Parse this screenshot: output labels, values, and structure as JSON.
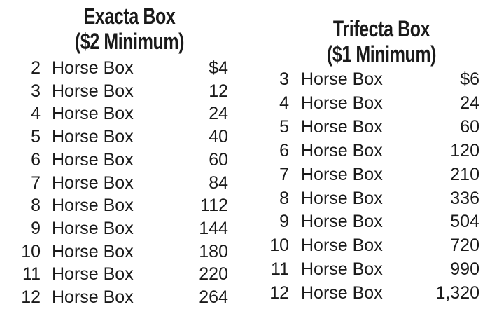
{
  "exacta": {
    "title": "Exacta Box",
    "subtitle": "($2 Minimum)",
    "rows": [
      {
        "n": "2",
        "label": "Horse Box",
        "cost": "$4"
      },
      {
        "n": "3",
        "label": "Horse Box",
        "cost": "12"
      },
      {
        "n": "4",
        "label": "Horse Box",
        "cost": "24"
      },
      {
        "n": "5",
        "label": "Horse Box",
        "cost": "40"
      },
      {
        "n": "6",
        "label": "Horse Box",
        "cost": "60"
      },
      {
        "n": "7",
        "label": "Horse Box",
        "cost": "84"
      },
      {
        "n": "8",
        "label": "Horse Box",
        "cost": "112"
      },
      {
        "n": "9",
        "label": "Horse Box",
        "cost": "144"
      },
      {
        "n": "10",
        "label": "Horse Box",
        "cost": "180"
      },
      {
        "n": "11",
        "label": "Horse Box",
        "cost": "220"
      },
      {
        "n": "12",
        "label": "Horse Box",
        "cost": "264"
      }
    ]
  },
  "trifecta": {
    "title": "Trifecta Box",
    "subtitle": "($1 Minimum)",
    "rows": [
      {
        "n": "3",
        "label": "Horse Box",
        "cost": "$6"
      },
      {
        "n": "4",
        "label": "Horse Box",
        "cost": "24"
      },
      {
        "n": "5",
        "label": "Horse Box",
        "cost": "60"
      },
      {
        "n": "6",
        "label": "Horse Box",
        "cost": "120"
      },
      {
        "n": "7",
        "label": "Horse Box",
        "cost": "210"
      },
      {
        "n": "8",
        "label": "Horse Box",
        "cost": "336"
      },
      {
        "n": "9",
        "label": "Horse Box",
        "cost": "504"
      },
      {
        "n": "10",
        "label": "Horse Box",
        "cost": "720"
      },
      {
        "n": "11",
        "label": "Horse Box",
        "cost": "990"
      },
      {
        "n": "12",
        "label": "Horse Box",
        "cost": "1,320"
      }
    ]
  }
}
